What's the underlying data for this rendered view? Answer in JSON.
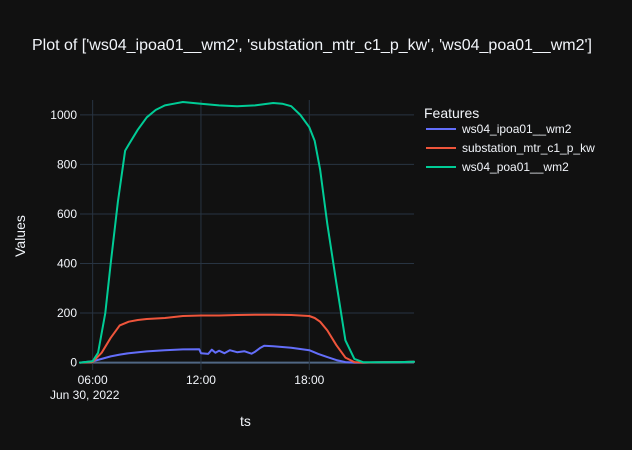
{
  "chart_data": {
    "type": "line",
    "title": "Plot of ['ws04_ipoa01__wm2', 'substation_mtr_c1_p_kw', 'ws04_poa01__wm2']",
    "xlabel": "ts",
    "ylabel": "Values",
    "x_tick_labels": [
      "06:00",
      "12:00",
      "18:00"
    ],
    "x_tick_hours": [
      6,
      12,
      18
    ],
    "x_date_label": "Jun 30, 2022",
    "xlim_hours": [
      5.3,
      23.8
    ],
    "ylim": [
      -30,
      1060
    ],
    "y_ticks": [
      0,
      200,
      400,
      600,
      800,
      1000
    ],
    "grid": true,
    "legend": {
      "title": "Features",
      "placement": "right"
    },
    "series": [
      {
        "name": "ws04_ipoa01__wm2",
        "color": "#636efa",
        "points": [
          [
            5.3,
            0
          ],
          [
            6.0,
            5
          ],
          [
            6.5,
            15
          ],
          [
            7.0,
            25
          ],
          [
            7.5,
            32
          ],
          [
            8.0,
            38
          ],
          [
            9.0,
            45
          ],
          [
            10.0,
            50
          ],
          [
            11.0,
            53
          ],
          [
            11.9,
            54
          ],
          [
            12.0,
            38
          ],
          [
            12.4,
            35
          ],
          [
            12.6,
            52
          ],
          [
            12.8,
            40
          ],
          [
            13.0,
            48
          ],
          [
            13.3,
            38
          ],
          [
            13.6,
            50
          ],
          [
            14.0,
            42
          ],
          [
            14.4,
            46
          ],
          [
            14.8,
            36
          ],
          [
            15.0,
            44
          ],
          [
            15.3,
            60
          ],
          [
            15.5,
            68
          ],
          [
            16.0,
            66
          ],
          [
            17.0,
            60
          ],
          [
            18.0,
            50
          ],
          [
            18.5,
            35
          ],
          [
            19.0,
            22
          ],
          [
            19.5,
            10
          ],
          [
            20.0,
            2
          ],
          [
            20.5,
            0
          ],
          [
            21.0,
            0
          ],
          [
            22.0,
            1
          ],
          [
            23.0,
            2
          ],
          [
            23.8,
            3
          ]
        ]
      },
      {
        "name": "substation_mtr_c1_p_kw",
        "color": "#ef553b",
        "points": [
          [
            5.3,
            0
          ],
          [
            6.0,
            2
          ],
          [
            6.5,
            40
          ],
          [
            7.0,
            100
          ],
          [
            7.5,
            150
          ],
          [
            8.0,
            165
          ],
          [
            8.5,
            172
          ],
          [
            9.0,
            176
          ],
          [
            10.0,
            180
          ],
          [
            11.0,
            188
          ],
          [
            12.0,
            190
          ],
          [
            13.0,
            190
          ],
          [
            14.0,
            192
          ],
          [
            15.0,
            193
          ],
          [
            16.0,
            193
          ],
          [
            17.0,
            192
          ],
          [
            18.0,
            188
          ],
          [
            18.3,
            180
          ],
          [
            18.6,
            165
          ],
          [
            19.0,
            130
          ],
          [
            19.5,
            70
          ],
          [
            20.0,
            20
          ],
          [
            20.5,
            2
          ],
          [
            21.0,
            0
          ],
          [
            22.0,
            1
          ],
          [
            23.0,
            2
          ],
          [
            23.8,
            3
          ]
        ]
      },
      {
        "name": "ws04_poa01__wm2",
        "color": "#00cc96",
        "points": [
          [
            5.3,
            0
          ],
          [
            6.0,
            5
          ],
          [
            6.3,
            40
          ],
          [
            6.7,
            200
          ],
          [
            7.0,
            400
          ],
          [
            7.4,
            650
          ],
          [
            7.8,
            855
          ],
          [
            8.0,
            880
          ],
          [
            8.5,
            940
          ],
          [
            9.0,
            990
          ],
          [
            9.5,
            1020
          ],
          [
            10.0,
            1038
          ],
          [
            10.5,
            1045
          ],
          [
            11.0,
            1052
          ],
          [
            12.0,
            1045
          ],
          [
            13.0,
            1038
          ],
          [
            14.0,
            1035
          ],
          [
            15.0,
            1038
          ],
          [
            16.0,
            1048
          ],
          [
            16.5,
            1045
          ],
          [
            17.0,
            1035
          ],
          [
            17.5,
            1000
          ],
          [
            18.0,
            950
          ],
          [
            18.3,
            895
          ],
          [
            18.6,
            780
          ],
          [
            19.0,
            560
          ],
          [
            19.5,
            320
          ],
          [
            20.0,
            90
          ],
          [
            20.5,
            15
          ],
          [
            21.0,
            1
          ],
          [
            22.0,
            1
          ],
          [
            23.0,
            2
          ],
          [
            23.8,
            3
          ]
        ]
      }
    ]
  }
}
